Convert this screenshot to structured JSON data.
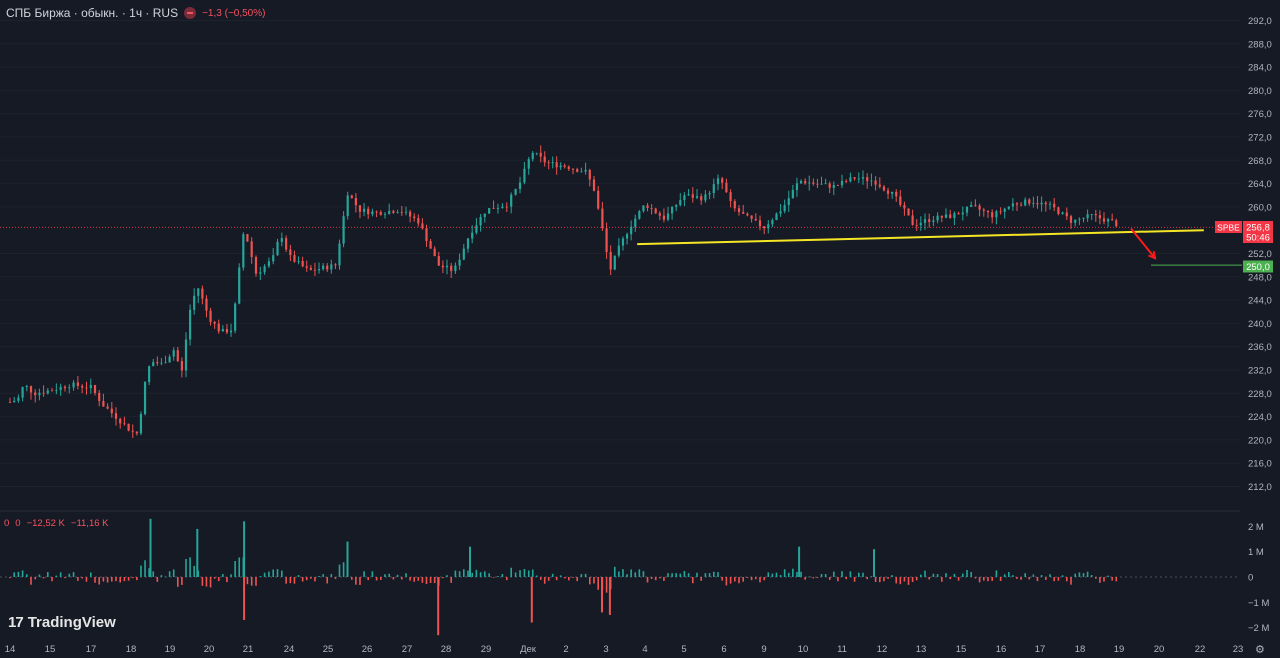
{
  "header": {
    "title": "СПБ Биржа · обыкн. · 1ч · RUS",
    "change": "−1,3 (−0,50%)"
  },
  "volume_header": {
    "values": [
      "0",
      "0",
      "−12,52 K",
      "−11,16 K"
    ]
  },
  "branding": {
    "logo_text": "TradingView",
    "logo_mark": "17"
  },
  "price_tag": {
    "ticker": "SPBE",
    "price": "256,8",
    "countdown": "50:46",
    "target": "250,0"
  },
  "colors": {
    "background": "#161a25",
    "up": "#26a69a",
    "down": "#ef5350",
    "trendline": "#f5e625",
    "arrow": "#ff1a1a",
    "target_line": "#4caf50",
    "price_tag": "#f23645",
    "target_tag": "#4caf50"
  },
  "icons": {
    "settings": "gear-icon",
    "change_badge": "minus-circle-icon"
  },
  "chart_data": [
    {
      "type": "candlestick",
      "title": "СПБ Биржа · обыкн. · 1ч · RUS",
      "y_ticks": [
        "292,0",
        "288,0",
        "284,0",
        "280,0",
        "276,0",
        "272,0",
        "268,0",
        "264,0",
        "260,0",
        "252,0",
        "248,0",
        "244,0",
        "240,0",
        "236,0",
        "232,0",
        "228,0",
        "224,0",
        "220,0",
        "216,0",
        "212,0"
      ],
      "ylim": [
        210,
        294
      ],
      "x_ticks": [
        "14",
        "15",
        "17",
        "18",
        "19",
        "20",
        "21",
        "24",
        "25",
        "26",
        "27",
        "28",
        "29",
        "Дек",
        "2",
        "3",
        "4",
        "5",
        "6",
        "9",
        "10",
        "11",
        "12",
        "13",
        "15",
        "16",
        "17",
        "18",
        "19",
        "20",
        "22",
        "23"
      ],
      "last_price": 256.8,
      "close_path": [
        {
          "x": 0,
          "y": 226.5
        },
        {
          "x": 0.2,
          "y": 227.0
        },
        {
          "x": 0.35,
          "y": 229.5
        },
        {
          "x": 0.6,
          "y": 228.0
        },
        {
          "x": 1.0,
          "y": 228.5
        },
        {
          "x": 1.5,
          "y": 229.5
        },
        {
          "x": 2.0,
          "y": 229.0
        },
        {
          "x": 2.3,
          "y": 226.0
        },
        {
          "x": 2.7,
          "y": 223.5
        },
        {
          "x": 3.0,
          "y": 221.5
        },
        {
          "x": 3.2,
          "y": 221.0
        },
        {
          "x": 3.3,
          "y": 228.0
        },
        {
          "x": 3.5,
          "y": 233.5
        },
        {
          "x": 3.8,
          "y": 233.0
        },
        {
          "x": 4.1,
          "y": 235.5
        },
        {
          "x": 4.3,
          "y": 231.5
        },
        {
          "x": 4.5,
          "y": 242.0
        },
        {
          "x": 4.7,
          "y": 246.5
        },
        {
          "x": 5.0,
          "y": 241.0
        },
        {
          "x": 5.3,
          "y": 238.5
        },
        {
          "x": 5.6,
          "y": 239.0
        },
        {
          "x": 5.9,
          "y": 256.5
        },
        {
          "x": 6.2,
          "y": 248.5
        },
        {
          "x": 6.6,
          "y": 251.0
        },
        {
          "x": 6.8,
          "y": 255.5
        },
        {
          "x": 7.0,
          "y": 251.5
        },
        {
          "x": 7.5,
          "y": 249.0
        },
        {
          "x": 8.2,
          "y": 250.0
        },
        {
          "x": 8.5,
          "y": 262.5
        },
        {
          "x": 8.8,
          "y": 259.5
        },
        {
          "x": 9.2,
          "y": 259.0
        },
        {
          "x": 9.8,
          "y": 259.5
        },
        {
          "x": 10.3,
          "y": 257.5
        },
        {
          "x": 10.8,
          "y": 250.0
        },
        {
          "x": 11.2,
          "y": 249.0
        },
        {
          "x": 11.6,
          "y": 255.5
        },
        {
          "x": 12.0,
          "y": 259.5
        },
        {
          "x": 12.5,
          "y": 260.5
        },
        {
          "x": 12.8,
          "y": 264.0
        },
        {
          "x": 13.1,
          "y": 269.5
        },
        {
          "x": 13.5,
          "y": 267.5
        },
        {
          "x": 14.0,
          "y": 267.0
        },
        {
          "x": 14.5,
          "y": 266.0
        },
        {
          "x": 14.7,
          "y": 263.0
        },
        {
          "x": 14.9,
          "y": 256.5
        },
        {
          "x": 15.1,
          "y": 249.0
        },
        {
          "x": 15.3,
          "y": 252.5
        },
        {
          "x": 15.6,
          "y": 256.5
        },
        {
          "x": 16.0,
          "y": 260.5
        },
        {
          "x": 16.5,
          "y": 258.0
        },
        {
          "x": 17.0,
          "y": 262.0
        },
        {
          "x": 17.5,
          "y": 261.5
        },
        {
          "x": 17.9,
          "y": 265.0
        },
        {
          "x": 18.2,
          "y": 260.0
        },
        {
          "x": 18.6,
          "y": 258.0
        },
        {
          "x": 19.0,
          "y": 256.5
        },
        {
          "x": 19.5,
          "y": 260.0
        },
        {
          "x": 19.9,
          "y": 264.5
        },
        {
          "x": 20.3,
          "y": 264.0
        },
        {
          "x": 20.8,
          "y": 263.5
        },
        {
          "x": 21.3,
          "y": 265.0
        },
        {
          "x": 21.8,
          "y": 264.5
        },
        {
          "x": 22.3,
          "y": 262.0
        },
        {
          "x": 22.8,
          "y": 257.0
        },
        {
          "x": 23.3,
          "y": 258.0
        },
        {
          "x": 23.8,
          "y": 258.5
        },
        {
          "x": 24.3,
          "y": 260.0
        },
        {
          "x": 24.8,
          "y": 258.5
        },
        {
          "x": 25.3,
          "y": 260.5
        },
        {
          "x": 25.8,
          "y": 261.0
        },
        {
          "x": 26.3,
          "y": 260.0
        },
        {
          "x": 26.8,
          "y": 257.5
        },
        {
          "x": 27.3,
          "y": 258.5
        },
        {
          "x": 27.8,
          "y": 257.5
        },
        {
          "x": 28.0,
          "y": 256.8
        }
      ],
      "annotations": [
        {
          "kind": "trendline",
          "from": {
            "x": 15.8,
            "y": 253.6
          },
          "to": {
            "x": 30.1,
            "y": 256.0
          }
        },
        {
          "kind": "arrow",
          "from": {
            "x": 28.3,
            "y": 256.3
          },
          "to": {
            "x": 28.9,
            "y": 251.2
          }
        },
        {
          "kind": "hline",
          "from_x": 28.8,
          "y": 250.0
        }
      ]
    },
    {
      "type": "bar",
      "title": "Volume delta",
      "y_ticks": [
        "2 M",
        "1 M",
        "0",
        "−1 M",
        "−2 M"
      ],
      "ylim": [
        -2.4,
        2.4
      ],
      "notable_spikes": [
        {
          "x": 3.5,
          "value": 2.3
        },
        {
          "x": 4.7,
          "value": 1.9
        },
        {
          "x": 5.9,
          "value": 2.2
        },
        {
          "x": 5.9,
          "value": -1.7
        },
        {
          "x": 8.5,
          "value": 1.4
        },
        {
          "x": 10.8,
          "value": -2.3
        },
        {
          "x": 13.1,
          "value": -1.8
        },
        {
          "x": 14.9,
          "value": -1.4
        },
        {
          "x": 15.1,
          "value": -1.5
        },
        {
          "x": 11.6,
          "value": 1.2
        },
        {
          "x": 19.9,
          "value": 1.2
        },
        {
          "x": 21.8,
          "value": 1.1
        }
      ]
    }
  ]
}
